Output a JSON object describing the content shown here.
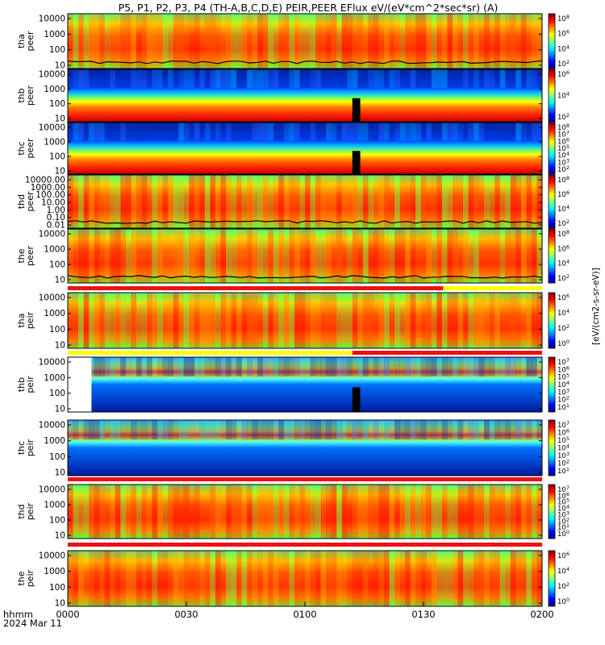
{
  "title": "P5, P1, P2, P3, P4 (TH-A,B,C,D,E) PEIR,PEER EFlux eV/(eV*cm^2*sec*sr) (A)",
  "footer": {
    "axis_label": "hhmm",
    "date": "2024 Mar 11"
  },
  "colors": {
    "frame": "#000000",
    "flag_red": "#ee1111",
    "flag_yellow": "#ffff00",
    "flag_white": "#ffffff"
  },
  "chart_data": {
    "type": "heatmap",
    "x_ticks": [
      "0000",
      "0030",
      "0100",
      "0130",
      "0200"
    ],
    "x_range": [
      "00:00",
      "02:00"
    ],
    "colorbar_label_right": "[eV/(cm2-s-sr-eV)]",
    "panels": [
      {
        "id": "tha_peer",
        "ylabel": [
          "tha",
          "peer"
        ],
        "yticks": [
          "10000",
          "1000",
          "100",
          "10"
        ],
        "cbar_ticks": [
          "10^8",
          "10^6",
          "10^4",
          "10^2"
        ],
        "scale": "log",
        "state": "mixed",
        "has_spacecraft_potential_line": true
      },
      {
        "id": "thb_peer",
        "ylabel": [
          "thb",
          "peer"
        ],
        "yticks": [
          "10000",
          "1000",
          "100",
          "10"
        ],
        "cbar_ticks": [
          "10^6",
          "10^4",
          "10^2"
        ],
        "scale": "log",
        "state": "layered",
        "gap": [
          "01:12",
          "01:14"
        ]
      },
      {
        "id": "thc_peer",
        "ylabel": [
          "thc",
          "peer"
        ],
        "yticks": [
          "10000",
          "1000",
          "100",
          "10"
        ],
        "cbar_ticks": [
          "10^8",
          "10^7",
          "10^6",
          "10^5",
          "10^4",
          "10^3",
          "10^2"
        ],
        "scale": "log",
        "state": "layered",
        "gap": [
          "01:12",
          "01:14"
        ]
      },
      {
        "id": "thd_peer",
        "ylabel": [
          "thd",
          "peer"
        ],
        "yticks": [
          "10000.00",
          "1000.00",
          "100.00",
          "10.00",
          "1.00",
          "0.10",
          "0.01"
        ],
        "cbar_ticks": [
          "10^8",
          "10^6",
          "10^4",
          "10^2"
        ],
        "scale": "log",
        "state": "mixed",
        "has_spacecraft_potential_line": true
      },
      {
        "id": "the_peer",
        "ylabel": [
          "the",
          "peer"
        ],
        "yticks": [
          "10000",
          "1000",
          "100",
          "10"
        ],
        "cbar_ticks": [
          "10^8",
          "10^6",
          "10^4",
          "10^2"
        ],
        "scale": "log",
        "state": "mixed",
        "has_spacecraft_potential_line": true
      },
      {
        "id": "tha_peir",
        "ylabel": [
          "tha",
          "peir"
        ],
        "yticks": [
          "10000",
          "1000",
          "100",
          "10"
        ],
        "cbar_ticks": [
          "10^6",
          "10^4",
          "10^2",
          "10^0"
        ],
        "scale": "log",
        "state": "mixed"
      },
      {
        "id": "thb_peir",
        "ylabel": [
          "thb",
          "peir"
        ],
        "yticks": [
          "10000",
          "1000",
          "100",
          "10"
        ],
        "cbar_ticks": [
          "10^7",
          "10^6",
          "10^5",
          "10^4",
          "10^3",
          "10^2",
          "10^1"
        ],
        "scale": "log",
        "state": "layered",
        "gap": [
          "01:12",
          "01:14"
        ],
        "no_data_start": [
          "00:00",
          "00:06"
        ]
      },
      {
        "id": "thc_peir",
        "ylabel": [
          "thc",
          "peir"
        ],
        "yticks": [
          "10000",
          "1000",
          "100",
          "10"
        ],
        "cbar_ticks": [
          "10^7",
          "10^6",
          "10^5",
          "10^4",
          "10^3",
          "10^2",
          "10^1"
        ],
        "scale": "log",
        "state": "layered"
      },
      {
        "id": "thd_peir",
        "ylabel": [
          "thd",
          "peir"
        ],
        "yticks": [
          "10000",
          "1000",
          "100",
          "10"
        ],
        "cbar_ticks": [
          "10^7",
          "10^6",
          "10^5",
          "10^4",
          "10^3",
          "10^2",
          "10^1",
          "10^0"
        ],
        "scale": "log",
        "state": "mixed"
      },
      {
        "id": "the_peir",
        "ylabel": [
          "the",
          "peir"
        ],
        "yticks": [
          "10000",
          "1000",
          "100",
          "10"
        ],
        "cbar_ticks": [
          "10^6",
          "10^4",
          "10^2",
          "10^0"
        ],
        "scale": "log",
        "state": "mixed"
      }
    ],
    "mode_bars": [
      {
        "after": "the_peer",
        "segments": [
          {
            "color": "red",
            "from": "00:00",
            "to": "01:35"
          },
          {
            "color": "yellow",
            "from": "01:35",
            "to": "02:00"
          }
        ]
      },
      {
        "after": "tha_peir",
        "segments": [
          {
            "color": "yellow",
            "from": "00:00",
            "to": "01:12"
          },
          {
            "color": "red",
            "from": "01:12",
            "to": "02:00"
          }
        ]
      },
      {
        "after": "thc_peir",
        "segments": [
          {
            "color": "red",
            "from": "00:00",
            "to": "02:00"
          }
        ]
      },
      {
        "after": "thd_peir",
        "segments": [
          {
            "color": "red",
            "from": "00:00",
            "to": "02:00"
          }
        ]
      }
    ]
  }
}
